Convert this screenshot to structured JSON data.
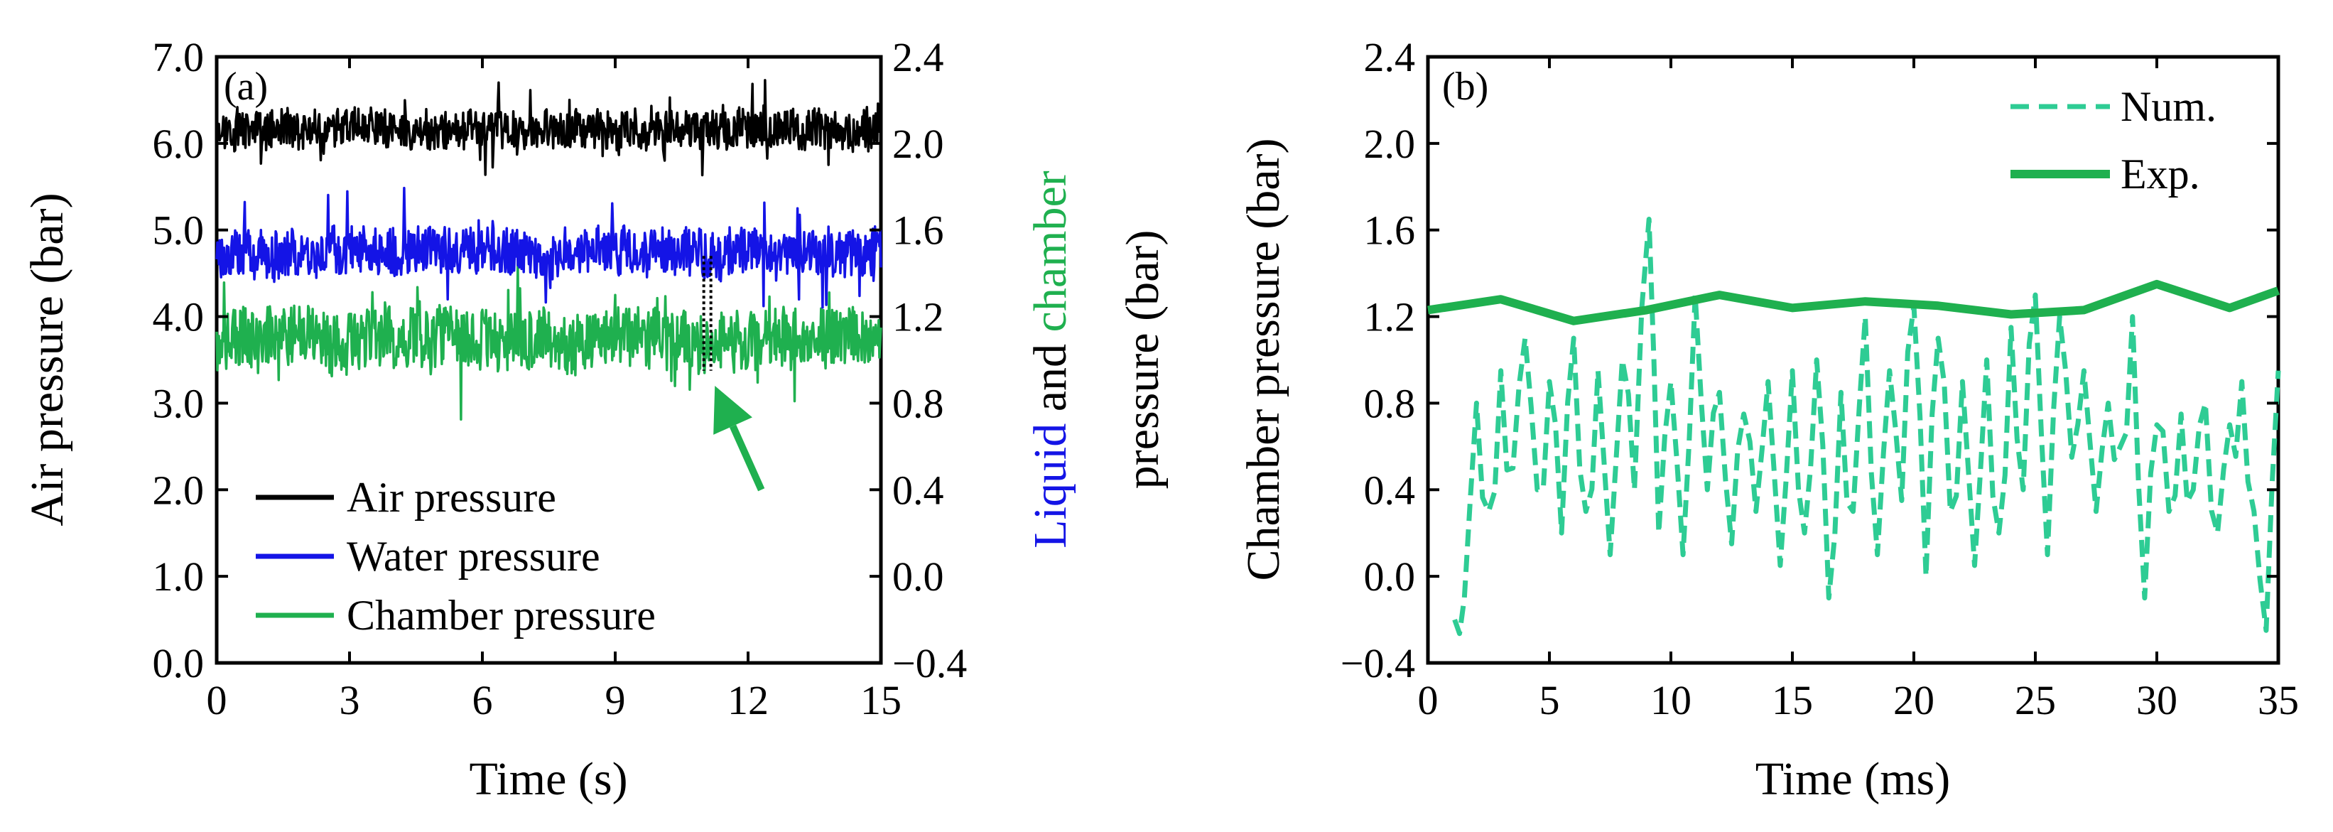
{
  "chart_data": [
    {
      "type": "line",
      "panel_label": "(a)",
      "xlabel": "Time (s)",
      "ylabel": "Air pressure (bar)",
      "xlim": [
        0,
        15
      ],
      "ylim": [
        0.0,
        7.0
      ],
      "xticks": [
        0,
        3,
        6,
        9,
        12,
        15
      ],
      "xtick_labels": [
        "0",
        "3",
        "6",
        "9",
        "12",
        "15"
      ],
      "yticks": [
        0,
        1,
        2,
        3,
        4,
        5,
        6,
        7
      ],
      "ytick_labels": [
        "0.0",
        "1.0",
        "2.0",
        "3.0",
        "4.0",
        "5.0",
        "6.0",
        "7.0"
      ],
      "y2lim": [
        -0.4,
        2.4
      ],
      "y2ticks": [
        -0.4,
        0.0,
        0.4,
        0.8,
        1.2,
        1.6,
        2.0,
        2.4
      ],
      "y2tick_labels": [
        "−0.4",
        "0.0",
        "0.4",
        "0.8",
        "1.2",
        "1.6",
        "2.0",
        "2.4"
      ],
      "y2label_parts": [
        {
          "text": "Liquid",
          "color": "#1414e6"
        },
        {
          "text": " and ",
          "color": "#000000"
        },
        {
          "text": "chamber",
          "color": "#1fb04f"
        }
      ],
      "y2label_line2": "pressure (bar)",
      "series": [
        {
          "name": "Air pressure",
          "color": "#000000",
          "axis": "left",
          "mean": 6.15,
          "amplitude": 0.22,
          "spike": 0.15,
          "seed": 11
        },
        {
          "name": "Water pressure",
          "color": "#1414e6",
          "axis": "right",
          "mean": 1.5,
          "amplitude": 0.11,
          "spike": 0.08,
          "seed": 23
        },
        {
          "name": "Chamber pressure",
          "color": "#1fb04f",
          "axis": "right",
          "mean": 1.1,
          "amplitude": 0.14,
          "spike": 0.1,
          "seed": 37
        }
      ],
      "annotation": {
        "type": "arrow",
        "color": "#1fb04f",
        "marker_x": 11.0,
        "marker_y_range": [
          0.95,
          1.48
        ],
        "arrow_from": [
          12.3,
          0.4
        ],
        "arrow_to": [
          11.25,
          0.88
        ]
      },
      "legend": {
        "location": "bottom-left",
        "entries": [
          "Air pressure",
          "Water pressure",
          "Chamber pressure"
        ]
      }
    },
    {
      "type": "line",
      "panel_label": "(b)",
      "xlabel": "Time (ms)",
      "ylabel": "Chamber pressure (bar)",
      "xlim": [
        0,
        35
      ],
      "ylim": [
        -0.4,
        2.4
      ],
      "xticks": [
        0,
        5,
        10,
        15,
        20,
        25,
        30,
        35
      ],
      "xtick_labels": [
        "0",
        "5",
        "10",
        "15",
        "20",
        "25",
        "30",
        "35"
      ],
      "yticks": [
        -0.4,
        0.0,
        0.4,
        0.8,
        1.2,
        1.6,
        2.0,
        2.4
      ],
      "ytick_labels": [
        "−0.4",
        "0.0",
        "0.4",
        "0.8",
        "1.2",
        "1.6",
        "2.0",
        "2.4"
      ],
      "series": [
        {
          "name": "Num.",
          "color": "#2ecc94",
          "style": "dashed",
          "x": [
            1.1,
            1.5,
            2.0,
            2.5,
            3.0,
            3.5,
            4.0,
            4.5,
            5.0,
            5.5,
            6.0,
            6.5,
            7.0,
            7.5,
            8.0,
            8.5,
            9.1,
            9.5,
            10.0,
            10.5,
            11.0,
            11.5,
            12.0,
            12.5,
            13.0,
            13.5,
            14.0,
            14.5,
            15.0,
            15.5,
            16.0,
            16.5,
            17.0,
            17.5,
            18.0,
            18.5,
            19.0,
            19.5,
            20.0,
            20.5,
            21.0,
            21.5,
            22.0,
            22.5,
            23.0,
            23.5,
            24.0,
            24.5,
            25.0,
            25.5,
            26.0,
            26.5,
            27.0,
            27.5,
            28.0,
            28.5,
            29.0,
            29.5,
            30.0,
            30.5,
            31.0,
            31.5,
            32.0,
            32.5,
            33.0,
            33.5,
            34.0,
            34.5,
            35.0
          ],
          "y": [
            -0.2,
            -0.1,
            0.8,
            0.3,
            0.95,
            0.5,
            1.1,
            0.4,
            0.9,
            0.2,
            1.1,
            0.3,
            0.95,
            0.1,
            1.0,
            0.4,
            1.65,
            0.2,
            0.9,
            0.1,
            1.3,
            0.4,
            0.85,
            0.15,
            0.75,
            0.3,
            0.9,
            0.05,
            0.95,
            0.2,
            1.0,
            -0.1,
            0.85,
            0.3,
            1.2,
            0.1,
            0.95,
            0.35,
            1.25,
            0.0,
            1.1,
            0.3,
            0.9,
            0.05,
            1.0,
            0.2,
            1.15,
            0.4,
            1.3,
            0.1,
            1.2,
            0.55,
            0.95,
            0.3,
            0.8,
            0.6,
            1.2,
            -0.1,
            0.7,
            0.3,
            0.75,
            0.4,
            0.8,
            0.2,
            0.7,
            0.9,
            0.3,
            -0.25,
            0.95
          ]
        },
        {
          "name": "Exp.",
          "color": "#1fb04f",
          "style": "solid",
          "x": [
            0,
            3,
            6,
            9,
            12,
            15,
            18,
            21,
            24,
            27,
            30,
            33,
            35
          ],
          "y": [
            1.23,
            1.28,
            1.18,
            1.23,
            1.3,
            1.24,
            1.27,
            1.25,
            1.21,
            1.23,
            1.35,
            1.24,
            1.32
          ]
        }
      ],
      "legend": {
        "location": "top-right",
        "entries": [
          "Num.",
          "Exp."
        ]
      }
    }
  ]
}
